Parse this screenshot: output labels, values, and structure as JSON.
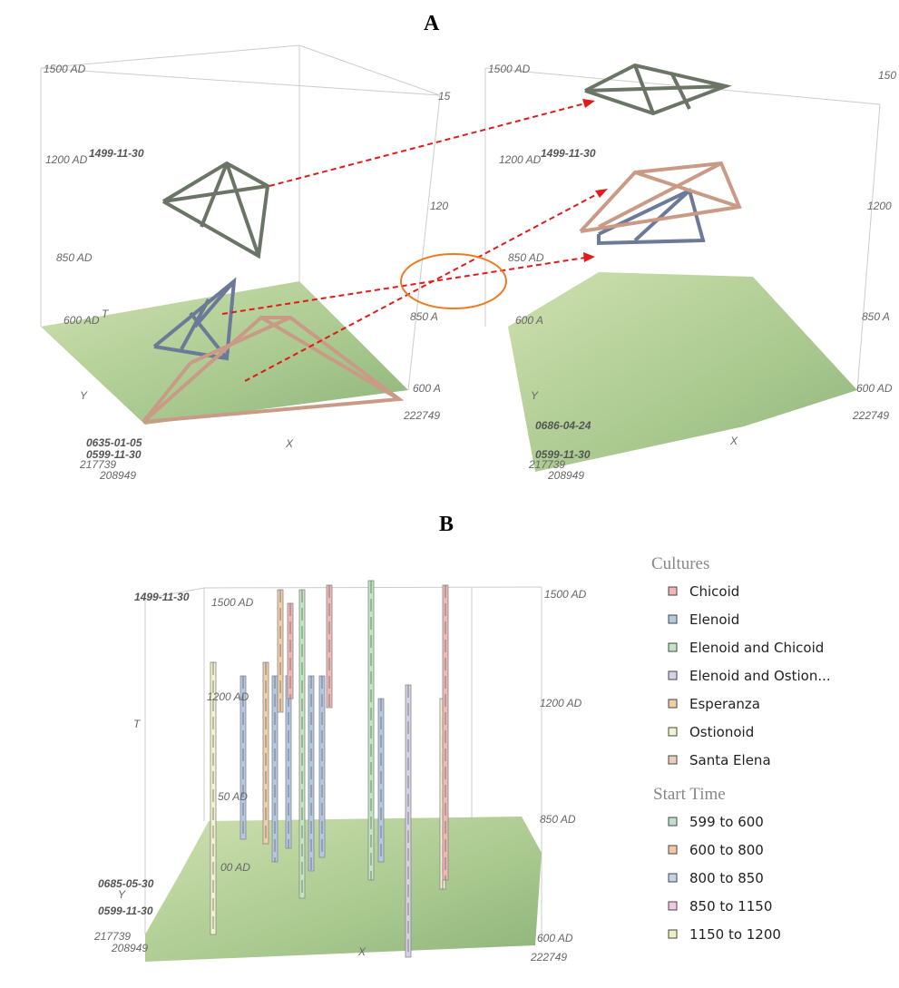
{
  "panel_a": {
    "label": "A",
    "left": {
      "labels": [
        "1500 AD",
        "15",
        "1499-11-30",
        "1200 AD",
        "120",
        "850 AD",
        "850 A",
        "600 AD",
        "T",
        "Y",
        "0635-01-05",
        "0599-11-30",
        "217739",
        "208949",
        "X",
        "600 A",
        "222749"
      ]
    },
    "right": {
      "labels": [
        "1500 AD",
        "150",
        "1499-11-30",
        "1200 AD",
        "1200",
        "850 AD",
        "850 A",
        "600 A",
        "600 AD",
        "222749",
        "Y",
        "0686-04-24",
        "0599-11-30",
        "217739",
        "208949",
        "X"
      ]
    }
  },
  "panel_b": {
    "label": "B",
    "labels": [
      "1499-11-30",
      "1500 AD",
      "1200 AD",
      "50 AD",
      "00 AD",
      "1500 AD",
      "1200 AD",
      "850 AD",
      "600 AD",
      "222749",
      "T",
      "Y",
      "0685-05-30",
      "0599-11-30",
      "217739",
      "208949",
      "X"
    ],
    "legend": {
      "cultures": {
        "title": "Cultures",
        "items": [
          {
            "name": "Chicoid",
            "color": "#f2b6b6"
          },
          {
            "name": "Elenoid",
            "color": "#b4c8e6"
          },
          {
            "name": "Elenoid and Chicoid",
            "color": "#bfe6bf"
          },
          {
            "name": "Elenoid and Ostion...",
            "color": "#d8d0e6"
          },
          {
            "name": "Esperanza",
            "color": "#f0cfa6"
          },
          {
            "name": "Ostionoid",
            "color": "#f2f2cc"
          },
          {
            "name": "Santa Elena",
            "color": "#e8cfbd"
          }
        ]
      },
      "start_time": {
        "title": "Start Time",
        "items": [
          {
            "name": "599 to 600",
            "color": "#bfe2cc"
          },
          {
            "name": "600 to 800",
            "color": "#f4c8a6"
          },
          {
            "name": "800 to 850",
            "color": "#c2d4ea"
          },
          {
            "name": "850 to 1150",
            "color": "#f2c8e0"
          },
          {
            "name": "1150 to 1200",
            "color": "#eef0bf"
          }
        ]
      }
    }
  }
}
